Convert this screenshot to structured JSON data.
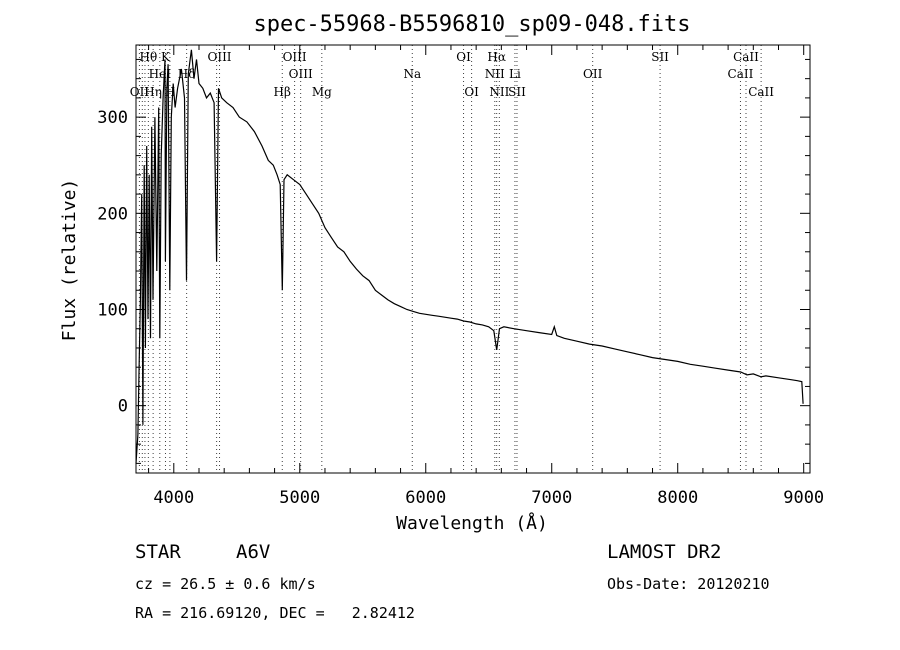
{
  "chart_data": {
    "type": "line",
    "title": "spec-55968-B5596810_sp09-048.fits",
    "xlabel": "Wavelength (Å)",
    "ylabel": "Flux (relative)",
    "xlim": [
      3700,
      9050
    ],
    "ylim": [
      -70,
      375
    ],
    "xticks": [
      4000,
      5000,
      6000,
      7000,
      8000,
      9000
    ],
    "yticks": [
      0,
      100,
      200,
      300
    ],
    "grid": false,
    "series": [
      {
        "color": "#000000",
        "x": [
          3700,
          3715,
          3725,
          3735,
          3745,
          3755,
          3765,
          3775,
          3785,
          3795,
          3805,
          3815,
          3825,
          3835,
          3850,
          3865,
          3880,
          3889,
          3900,
          3915,
          3930,
          3933,
          3945,
          3955,
          3968,
          3980,
          3995,
          4010,
          4030,
          4060,
          4085,
          4101,
          4115,
          4140,
          4160,
          4180,
          4200,
          4230,
          4260,
          4290,
          4320,
          4340,
          4355,
          4380,
          4420,
          4470,
          4520,
          4580,
          4640,
          4700,
          4750,
          4790,
          4820,
          4845,
          4861,
          4875,
          4900,
          4950,
          5000,
          5050,
          5100,
          5150,
          5200,
          5250,
          5300,
          5350,
          5400,
          5450,
          5500,
          5550,
          5600,
          5650,
          5700,
          5750,
          5800,
          5850,
          5900,
          5950,
          6000,
          6050,
          6100,
          6150,
          6200,
          6250,
          6300,
          6350,
          6400,
          6450,
          6500,
          6540,
          6563,
          6585,
          6620,
          6700,
          6800,
          6900,
          7000,
          7020,
          7040,
          7100,
          7200,
          7300,
          7400,
          7500,
          7600,
          7700,
          7800,
          7900,
          8000,
          8100,
          8200,
          8300,
          8400,
          8500,
          8550,
          8600,
          8660,
          8700,
          8800,
          8900,
          8950,
          8985,
          8995
        ],
        "y": [
          -60,
          -30,
          40,
          110,
          220,
          -20,
          250,
          60,
          270,
          90,
          240,
          70,
          290,
          110,
          300,
          140,
          310,
          70,
          260,
          320,
          360,
          150,
          330,
          355,
          120,
          300,
          335,
          310,
          330,
          350,
          320,
          130,
          345,
          370,
          340,
          360,
          335,
          330,
          320,
          325,
          315,
          150,
          330,
          320,
          315,
          310,
          300,
          295,
          285,
          270,
          255,
          250,
          240,
          230,
          120,
          235,
          240,
          235,
          230,
          220,
          210,
          200,
          185,
          175,
          165,
          160,
          150,
          142,
          135,
          130,
          120,
          115,
          110,
          106,
          103,
          100,
          98,
          96,
          95,
          94,
          93,
          92,
          91,
          90,
          88,
          87,
          85,
          84,
          82,
          78,
          58,
          80,
          82,
          80,
          78,
          76,
          74,
          82,
          73,
          70,
          67,
          64,
          62,
          59,
          56,
          53,
          50,
          48,
          46,
          43,
          41,
          39,
          37,
          35,
          32,
          33,
          30,
          31,
          29,
          27,
          26,
          25,
          2
        ]
      }
    ],
    "line_markers": [
      {
        "label": "Hθ",
        "wavelength": 3798,
        "row": 1
      },
      {
        "label": "K",
        "wavelength": 3934,
        "row": 1
      },
      {
        "label": "HeI",
        "wavelength": 3889,
        "row": 2
      },
      {
        "label": "Hδ",
        "wavelength": 4102,
        "row": 2
      },
      {
        "label": "OII",
        "wavelength": 3727,
        "row": 3
      },
      {
        "label": "Hη",
        "wavelength": 3836,
        "row": 3
      },
      {
        "label": "H",
        "wavelength": 3969,
        "row": 3
      },
      {
        "label": "OIII",
        "wavelength": 4363,
        "row": 1
      },
      {
        "label": "OIII",
        "wavelength": 4959,
        "row": 1
      },
      {
        "label": "OIII",
        "wavelength": 5007,
        "row": 2
      },
      {
        "label": "Hβ",
        "wavelength": 4861,
        "row": 3
      },
      {
        "label": "Mg",
        "wavelength": 5175,
        "row": 3
      },
      {
        "label": "Na",
        "wavelength": 5893,
        "row": 2
      },
      {
        "label": "OI",
        "wavelength": 6300,
        "row": 1
      },
      {
        "label": "OI",
        "wavelength": 6364,
        "row": 3
      },
      {
        "label": "Hα",
        "wavelength": 6563,
        "row": 1
      },
      {
        "label": "NII",
        "wavelength": 6548,
        "row": 2
      },
      {
        "label": "NII",
        "wavelength": 6584,
        "row": 3
      },
      {
        "label": "Li",
        "wavelength": 6708,
        "row": 2
      },
      {
        "label": "SII",
        "wavelength": 6724,
        "row": 3
      },
      {
        "label": "OII",
        "wavelength": 7325,
        "row": 2
      },
      {
        "label": "SII",
        "wavelength": 7860,
        "row": 1
      },
      {
        "label": "CaII",
        "wavelength": 8542,
        "row": 1
      },
      {
        "label": "CaII",
        "wavelength": 8498,
        "row": 2
      },
      {
        "label": "CaII",
        "wavelength": 8662,
        "row": 3
      }
    ],
    "marker_columns": [
      3727,
      3750,
      3771,
      3798,
      3836,
      3889,
      3934,
      3969,
      4102,
      4340,
      4363,
      4861,
      4959,
      5007,
      5175,
      5893,
      6300,
      6364,
      6548,
      6563,
      6584,
      6708,
      6724,
      7325,
      7860,
      8498,
      8542,
      8662
    ]
  },
  "info": {
    "object_class": "STAR",
    "subclass": "A6V",
    "survey": "LAMOST DR2",
    "cz": "cz = 26.5 ± 0.6 km/s",
    "obs_date": "Obs-Date: 20120210",
    "coords": "RA = 216.69120, DEC =   2.82412"
  }
}
